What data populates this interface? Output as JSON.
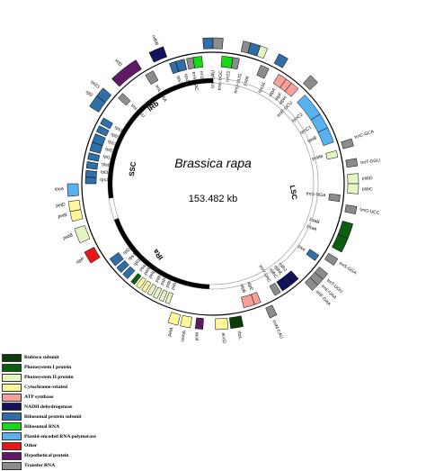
{
  "genome": {
    "species": "Brassica rapa",
    "length": "153.482 kb",
    "regions": {
      "lsc": "LSC",
      "ssc": "SSC",
      "ira": "IRa",
      "irb": "IRb"
    }
  },
  "legend": [
    {
      "label": "Rubisco subunit",
      "color": "#0b3d0b"
    },
    {
      "label": "Photosystem I protein",
      "color": "#0e5e12"
    },
    {
      "label": "Photosystem II protein",
      "color": "#e4f5c4"
    },
    {
      "label": "Cytochrome-related",
      "color": "#fbf79a"
    },
    {
      "label": "ATP synthase",
      "color": "#f5a19b"
    },
    {
      "label": "NADH dehydrogenase",
      "color": "#13135e"
    },
    {
      "label": "Ribosomal protein subunit",
      "color": "#2f6ea6"
    },
    {
      "label": "Ribosomal RNA",
      "color": "#17d917"
    },
    {
      "label": "Plastid-encoded RNA polymerase",
      "color": "#59b2f0"
    },
    {
      "label": "Other",
      "color": "#e81818"
    },
    {
      "label": "Hypothetical protein",
      "color": "#5e1a63"
    },
    {
      "label": "Transfer RNA",
      "color": "#8c8c8c"
    }
  ],
  "gene_labels": {
    "inside": [
      {
        "text": "rps16",
        "a": 27,
        "side": "in"
      },
      {
        "text": "trnQ-UUG",
        "a": 14,
        "side": "in"
      },
      {
        "text": "psbK",
        "a": 18,
        "side": "in"
      },
      {
        "text": "atpA",
        "a": 33,
        "side": "in"
      },
      {
        "text": "atpF",
        "a": 37,
        "side": "in"
      },
      {
        "text": "atpH",
        "a": 40,
        "side": "in"
      },
      {
        "text": "trnR-UCU",
        "a": 44,
        "side": "in"
      },
      {
        "text": "rpoC2",
        "a": 52,
        "side": "in"
      },
      {
        "text": "rpoC1",
        "a": 60,
        "side": "in"
      },
      {
        "text": "rpoB",
        "a": 66,
        "side": "in"
      },
      {
        "text": "trnC-GCA",
        "a": 72,
        "side": "out"
      },
      {
        "text": "psbM",
        "a": 76,
        "side": "in"
      },
      {
        "text": "trnT-GGU",
        "a": 82,
        "side": "out"
      },
      {
        "text": "psbD",
        "a": 88,
        "side": "out"
      },
      {
        "text": "psbC",
        "a": 92,
        "side": "out"
      },
      {
        "text": "trnS-UGA",
        "a": 96,
        "side": "in"
      },
      {
        "text": "trnG-UCC",
        "a": 100,
        "side": "out"
      },
      {
        "text": "psaB",
        "a": 110,
        "side": "in"
      },
      {
        "text": "psaA",
        "a": 114,
        "side": "in"
      },
      {
        "text": "trnS-GGA",
        "a": 122,
        "side": "out"
      },
      {
        "text": "rps4",
        "a": 126,
        "side": "in"
      },
      {
        "text": "trnT-UGU",
        "a": 130,
        "side": "out"
      },
      {
        "text": "trnL-UAA",
        "a": 133,
        "side": "out"
      },
      {
        "text": "trnF-GAA",
        "a": 136,
        "side": "out"
      },
      {
        "text": "ndhJ",
        "a": 140,
        "side": "in"
      },
      {
        "text": "ndhK",
        "a": 143,
        "side": "in"
      },
      {
        "text": "ndhC",
        "a": 146,
        "side": "in"
      },
      {
        "text": "trnV-UAC",
        "a": 150,
        "side": "in"
      },
      {
        "text": "trnM-CAU",
        "a": 156,
        "side": "out"
      },
      {
        "text": "atpE",
        "a": 160,
        "side": "in"
      },
      {
        "text": "atpB",
        "a": 164,
        "side": "in"
      },
      {
        "text": "rbcL",
        "a": 170,
        "side": "out"
      },
      {
        "text": "accD",
        "a": 176,
        "side": "out"
      },
      {
        "text": "ycf4",
        "a": 186,
        "side": "out"
      },
      {
        "text": "cemA",
        "a": 191,
        "side": "out"
      },
      {
        "text": "petA",
        "a": 196,
        "side": "out"
      },
      {
        "text": "psbJ",
        "a": 201,
        "side": "in"
      },
      {
        "text": "psbL",
        "a": 204,
        "side": "in"
      },
      {
        "text": "psbF",
        "a": 207,
        "side": "in"
      },
      {
        "text": "psbE",
        "a": 210,
        "side": "in"
      },
      {
        "text": "petL",
        "a": 214,
        "side": "in"
      },
      {
        "text": "petG",
        "a": 217,
        "side": "in"
      },
      {
        "text": "psaJ",
        "a": 220,
        "side": "in"
      },
      {
        "text": "rpl33",
        "a": 224,
        "side": "in"
      },
      {
        "text": "rps18",
        "a": 228,
        "side": "in"
      },
      {
        "text": "rpl20",
        "a": 232,
        "side": "in"
      },
      {
        "text": "clpP",
        "a": 240,
        "side": "out"
      },
      {
        "text": "psbB",
        "a": 250,
        "side": "out"
      },
      {
        "text": "petB",
        "a": 258,
        "side": "out"
      },
      {
        "text": "petD",
        "a": 262,
        "side": "out"
      },
      {
        "text": "rpoA",
        "a": 268,
        "side": "out"
      },
      {
        "text": "rps11",
        "a": 272,
        "side": "in"
      },
      {
        "text": "rpl36",
        "a": 276,
        "side": "in"
      },
      {
        "text": "rps8",
        "a": 280,
        "side": "in"
      },
      {
        "text": "rpl14",
        "a": 284,
        "side": "in"
      },
      {
        "text": "rpl16",
        "a": 288,
        "side": "in"
      },
      {
        "text": "rps3",
        "a": 292,
        "side": "in"
      },
      {
        "text": "rpl22",
        "a": 296,
        "side": "in"
      },
      {
        "text": "rps19",
        "a": 300,
        "side": "in"
      },
      {
        "text": "rpl2",
        "a": 306,
        "side": "out"
      },
      {
        "text": "rpl23",
        "a": 310,
        "side": "out"
      },
      {
        "text": "trnI-CAU",
        "a": 314,
        "side": "in"
      },
      {
        "text": "ycf2",
        "a": 322,
        "side": "out"
      },
      {
        "text": "trnL-CAA",
        "a": 330,
        "side": "in"
      },
      {
        "text": "ndhB",
        "a": 338,
        "side": "out"
      },
      {
        "text": "rps7",
        "a": 342,
        "side": "in"
      },
      {
        "text": "rps12",
        "a": 346,
        "side": "in"
      },
      {
        "text": "trnV-GAC",
        "a": 350,
        "side": "in"
      },
      {
        "text": "rrn16",
        "a": 354,
        "side": "in"
      },
      {
        "text": "trnI-GAU",
        "a": 0,
        "side": "in"
      },
      {
        "text": "trnA-UGC",
        "a": 4,
        "side": "in"
      },
      {
        "text": "rrn23",
        "a": 8,
        "side": "in"
      }
    ]
  }
}
